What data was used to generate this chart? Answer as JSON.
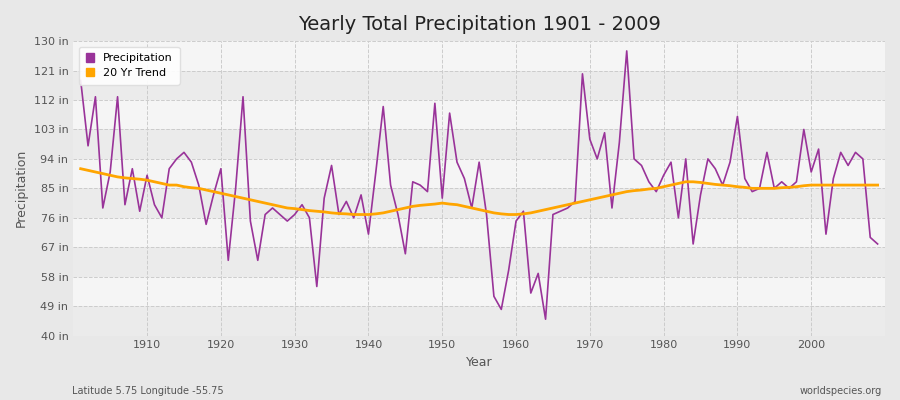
{
  "title": "Yearly Total Precipitation 1901 - 2009",
  "xlabel": "Year",
  "ylabel": "Precipitation",
  "subtitle": "Latitude 5.75 Longitude -55.75",
  "watermark": "worldspecies.org",
  "ylim": [
    40,
    130
  ],
  "yticks": [
    40,
    49,
    58,
    67,
    76,
    85,
    94,
    103,
    112,
    121,
    130
  ],
  "ytick_labels": [
    "40 in",
    "49 in",
    "58 in",
    "67 in",
    "76 in",
    "85 in",
    "94 in",
    "103 in",
    "112 in",
    "121 in",
    "130 in"
  ],
  "xtick_vals": [
    1910,
    1920,
    1930,
    1940,
    1950,
    1960,
    1970,
    1980,
    1990,
    2000
  ],
  "years": [
    1901,
    1902,
    1903,
    1904,
    1905,
    1906,
    1907,
    1908,
    1909,
    1910,
    1911,
    1912,
    1913,
    1914,
    1915,
    1916,
    1917,
    1918,
    1919,
    1920,
    1921,
    1922,
    1923,
    1924,
    1925,
    1926,
    1927,
    1928,
    1929,
    1930,
    1931,
    1932,
    1933,
    1934,
    1935,
    1936,
    1937,
    1938,
    1939,
    1940,
    1941,
    1942,
    1943,
    1944,
    1945,
    1946,
    1947,
    1948,
    1949,
    1950,
    1951,
    1952,
    1953,
    1954,
    1955,
    1956,
    1957,
    1958,
    1959,
    1960,
    1961,
    1962,
    1963,
    1964,
    1965,
    1966,
    1967,
    1968,
    1969,
    1970,
    1971,
    1972,
    1973,
    1974,
    1975,
    1976,
    1977,
    1978,
    1979,
    1980,
    1981,
    1982,
    1983,
    1984,
    1985,
    1986,
    1987,
    1988,
    1989,
    1990,
    1991,
    1992,
    1993,
    1994,
    1995,
    1996,
    1997,
    1998,
    1999,
    2000,
    2001,
    2002,
    2003,
    2004,
    2005,
    2006,
    2007,
    2008,
    2009
  ],
  "precipitation": [
    118,
    98,
    113,
    79,
    90,
    113,
    80,
    91,
    78,
    89,
    80,
    76,
    91,
    94,
    96,
    93,
    86,
    74,
    83,
    91,
    63,
    85,
    113,
    75,
    63,
    77,
    79,
    77,
    75,
    77,
    80,
    76,
    55,
    82,
    92,
    77,
    81,
    76,
    83,
    71,
    90,
    110,
    86,
    77,
    65,
    87,
    86,
    84,
    111,
    82,
    108,
    93,
    88,
    79,
    93,
    77,
    52,
    48,
    60,
    75,
    78,
    53,
    59,
    45,
    77,
    78,
    79,
    81,
    120,
    100,
    94,
    102,
    79,
    99,
    127,
    94,
    92,
    87,
    84,
    89,
    93,
    76,
    94,
    68,
    83,
    94,
    91,
    86,
    93,
    107,
    88,
    84,
    85,
    96,
    85,
    87,
    85,
    87,
    103,
    90,
    97,
    71,
    88,
    96,
    92,
    96,
    94,
    70,
    68
  ],
  "trend": [
    91.0,
    90.5,
    90.0,
    89.5,
    89.0,
    88.5,
    88.2,
    88.0,
    87.8,
    87.5,
    87.0,
    86.5,
    86.0,
    86.0,
    85.5,
    85.2,
    85.0,
    84.5,
    84.0,
    83.5,
    83.0,
    82.5,
    82.0,
    81.5,
    81.0,
    80.5,
    80.0,
    79.5,
    79.0,
    78.8,
    78.5,
    78.2,
    78.0,
    77.8,
    77.5,
    77.3,
    77.2,
    77.0,
    77.0,
    77.0,
    77.2,
    77.5,
    78.0,
    78.5,
    79.0,
    79.5,
    79.8,
    80.0,
    80.2,
    80.5,
    80.2,
    80.0,
    79.5,
    79.0,
    78.5,
    78.0,
    77.5,
    77.2,
    77.0,
    77.0,
    77.2,
    77.5,
    78.0,
    78.5,
    79.0,
    79.5,
    80.0,
    80.5,
    81.0,
    81.5,
    82.0,
    82.5,
    83.0,
    83.5,
    84.0,
    84.3,
    84.5,
    84.8,
    85.0,
    85.5,
    86.0,
    86.5,
    87.0,
    87.0,
    86.8,
    86.5,
    86.2,
    86.0,
    85.8,
    85.5,
    85.3,
    85.0,
    85.0,
    85.0,
    85.0,
    85.2,
    85.3,
    85.5,
    85.8,
    86.0,
    86.0,
    86.0,
    86.0,
    86.0,
    86.0,
    86.0,
    86.0,
    86.0,
    86.0
  ],
  "precip_color": "#993399",
  "trend_color": "#FFA500",
  "fig_bg_color": "#E8E8E8",
  "plot_bg_color": "#F0F0F0",
  "band_color1": "#EBEBEB",
  "band_color2": "#F5F5F5",
  "grid_color": "#CCCCCC",
  "title_color": "#222222",
  "tick_color": "#555555",
  "title_fontsize": 14,
  "label_fontsize": 9,
  "tick_fontsize": 8,
  "legend_fontsize": 8
}
